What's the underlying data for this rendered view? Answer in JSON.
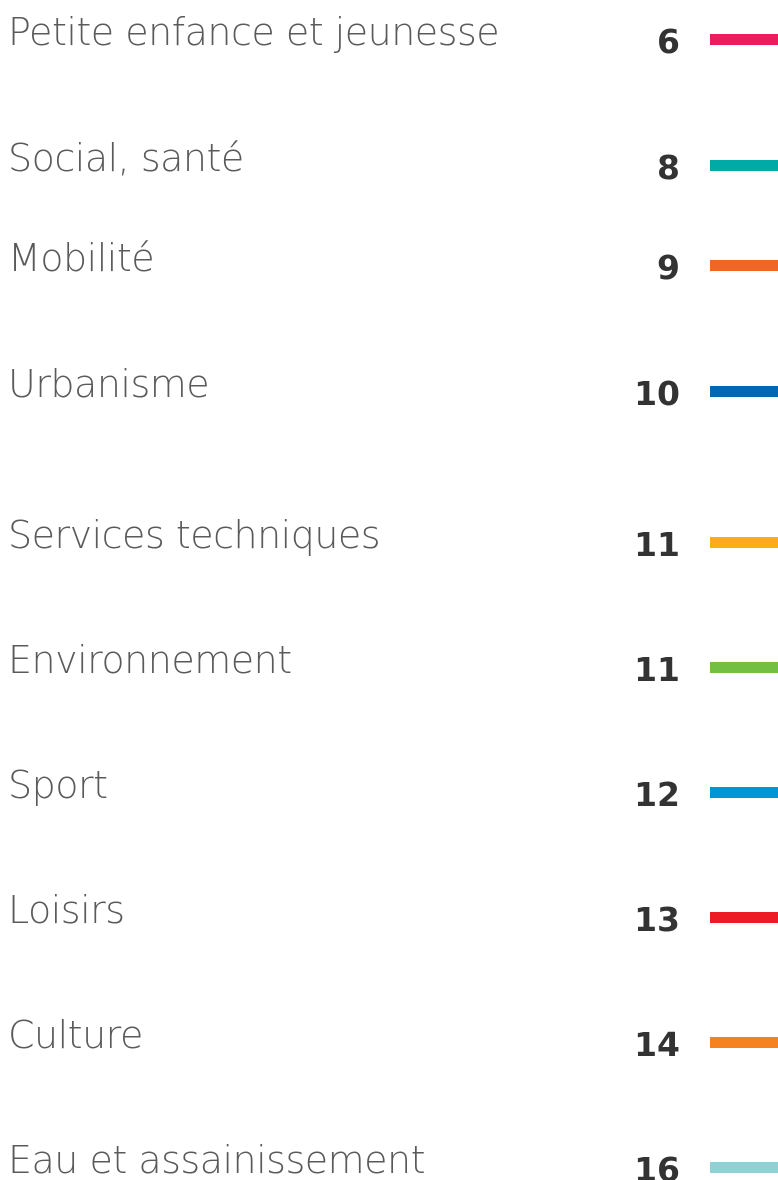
{
  "items": [
    {
      "label": "Petite enfance et jeunesse",
      "page": "6",
      "color": "#ee1c5e"
    },
    {
      "label": "Social, santé",
      "page": "8",
      "color": "#00aaa6"
    },
    {
      "label": "Mobilité",
      "page": "9",
      "color": "#f26522"
    },
    {
      "label": "Urbanisme",
      "page": "10",
      "color": "#0067b1"
    },
    {
      "label": "Services techniques",
      "page": "11",
      "color": "#fbad18"
    },
    {
      "label": "Environnement",
      "page": "11",
      "color": "#72bf44"
    },
    {
      "label": "Sport",
      "page": "12",
      "color": "#0095d6"
    },
    {
      "label": "Loisirs",
      "page": "13",
      "color": "#ed1c24"
    },
    {
      "label": "Culture",
      "page": "14",
      "color": "#f6821f"
    },
    {
      "label": "Eau et assainissement",
      "page": "16",
      "color": "#8ed2d6"
    }
  ]
}
